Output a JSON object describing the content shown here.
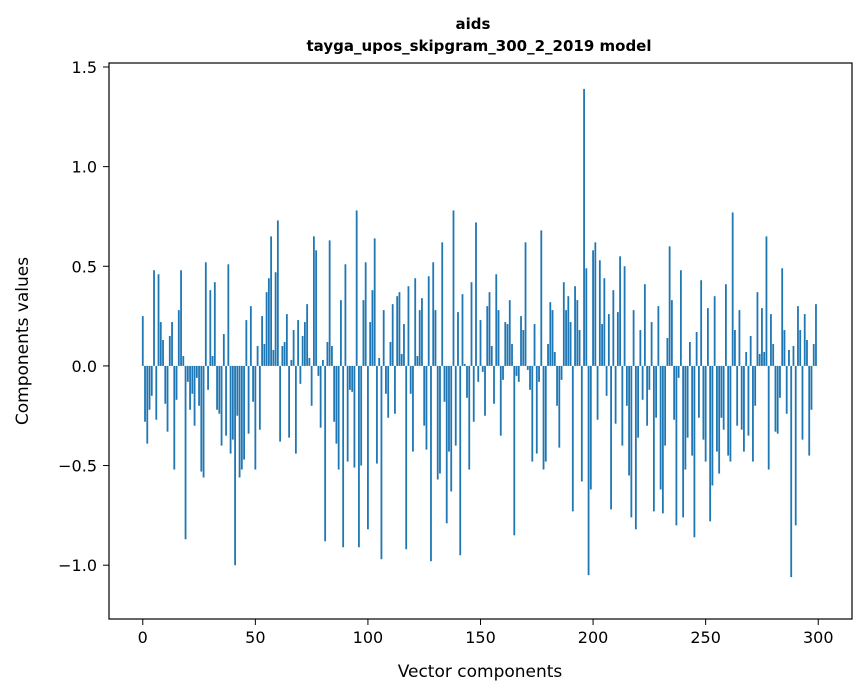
{
  "chart_data": {
    "type": "bar",
    "title": "aids",
    "subtitle": "tayga_upos_skipgram_300_2_2019 model",
    "xlabel": "Vector components",
    "ylabel": "Components values",
    "xlim": [
      -15,
      315
    ],
    "ylim": [
      -1.27,
      1.52
    ],
    "xticks": [
      0,
      50,
      100,
      150,
      200,
      250,
      300
    ],
    "yticks": [
      -1.0,
      -0.5,
      0.0,
      0.5,
      1.0,
      1.5
    ],
    "xtick_labels": [
      "0",
      "50",
      "100",
      "150",
      "200",
      "250",
      "300"
    ],
    "ytick_labels": [
      "−1.0",
      "−0.5",
      "0.0",
      "0.5",
      "1.0",
      "1.5"
    ],
    "bar_color": "#1f77b4",
    "grid": false,
    "x": "0..299 (one bar per vector component)",
    "values": [
      0.25,
      -0.28,
      -0.39,
      -0.22,
      -0.15,
      0.48,
      -0.27,
      0.46,
      0.22,
      0.13,
      -0.19,
      -0.33,
      0.15,
      0.22,
      -0.52,
      -0.17,
      0.28,
      0.48,
      0.05,
      -0.87,
      -0.08,
      -0.22,
      -0.14,
      -0.3,
      -0.06,
      -0.2,
      -0.53,
      -0.56,
      0.52,
      -0.12,
      0.38,
      0.05,
      0.42,
      -0.22,
      -0.24,
      -0.4,
      0.16,
      -0.35,
      0.51,
      -0.44,
      -0.37,
      -1.0,
      -0.25,
      -0.56,
      -0.52,
      -0.47,
      0.23,
      -0.34,
      0.3,
      -0.18,
      -0.52,
      0.1,
      -0.32,
      0.25,
      0.11,
      0.37,
      0.44,
      0.65,
      0.08,
      0.47,
      0.73,
      -0.38,
      0.1,
      0.12,
      0.26,
      -0.36,
      0.03,
      0.18,
      -0.44,
      0.23,
      -0.09,
      0.15,
      0.22,
      0.31,
      0.04,
      -0.2,
      0.65,
      0.58,
      -0.05,
      -0.31,
      0.03,
      -0.88,
      0.12,
      0.63,
      0.1,
      -0.28,
      -0.39,
      -0.52,
      0.33,
      -0.91,
      0.51,
      -0.48,
      -0.12,
      -0.13,
      -0.51,
      0.78,
      -0.91,
      -0.5,
      0.33,
      0.52,
      -0.82,
      0.22,
      0.38,
      0.64,
      -0.49,
      0.04,
      -0.97,
      0.28,
      -0.14,
      -0.26,
      0.12,
      0.31,
      -0.24,
      0.35,
      0.37,
      0.06,
      0.21,
      -0.92,
      0.4,
      -0.14,
      -0.43,
      0.44,
      0.05,
      0.28,
      0.34,
      -0.3,
      -0.42,
      0.45,
      -0.98,
      0.52,
      0.28,
      -0.57,
      -0.54,
      0.62,
      -0.18,
      -0.79,
      -0.43,
      -0.63,
      0.78,
      -0.4,
      0.27,
      -0.95,
      0.36,
      0.01,
      -0.16,
      -0.52,
      0.42,
      -0.28,
      0.72,
      -0.08,
      0.23,
      -0.03,
      -0.25,
      0.3,
      0.37,
      0.1,
      -0.19,
      0.46,
      0.28,
      -0.35,
      -0.07,
      0.22,
      0.21,
      0.33,
      0.11,
      -0.85,
      -0.05,
      -0.08,
      0.25,
      0.18,
      0.62,
      -0.02,
      -0.12,
      -0.48,
      0.21,
      -0.44,
      -0.08,
      0.68,
      -0.52,
      -0.48,
      0.11,
      0.32,
      0.28,
      0.07,
      -0.2,
      -0.41,
      -0.07,
      0.42,
      0.28,
      0.35,
      0.22,
      -0.73,
      0.4,
      0.33,
      0.18,
      -0.58,
      1.39,
      0.49,
      -1.05,
      -0.62,
      0.58,
      0.62,
      -0.27,
      0.53,
      0.21,
      0.44,
      -0.15,
      0.26,
      -0.72,
      0.38,
      -0.29,
      0.27,
      0.55,
      -0.4,
      0.5,
      -0.2,
      -0.55,
      -0.76,
      0.28,
      -0.82,
      -0.36,
      0.18,
      -0.17,
      0.41,
      -0.3,
      -0.12,
      0.22,
      -0.73,
      -0.26,
      0.3,
      -0.62,
      -0.74,
      -0.4,
      0.14,
      0.6,
      0.33,
      -0.27,
      -0.8,
      -0.06,
      0.48,
      -0.76,
      -0.52,
      -0.36,
      0.12,
      -0.45,
      -0.86,
      0.17,
      -0.26,
      0.43,
      -0.37,
      -0.48,
      0.29,
      -0.78,
      -0.6,
      0.35,
      -0.43,
      -0.54,
      -0.26,
      -0.32,
      0.41,
      -0.45,
      -0.48,
      0.77,
      0.18,
      -0.3,
      0.28,
      -0.32,
      -0.43,
      0.07,
      -0.35,
      0.15,
      -0.48,
      -0.2,
      0.37,
      0.06,
      0.29,
      0.07,
      0.65,
      -0.52,
      0.26,
      0.11,
      -0.33,
      -0.34,
      -0.16,
      0.49,
      0.18,
      -0.24,
      0.08,
      -1.06,
      0.1,
      -0.8,
      0.3,
      0.18,
      -0.37,
      0.26,
      0.13,
      -0.45,
      -0.22,
      0.11,
      0.31
    ]
  }
}
